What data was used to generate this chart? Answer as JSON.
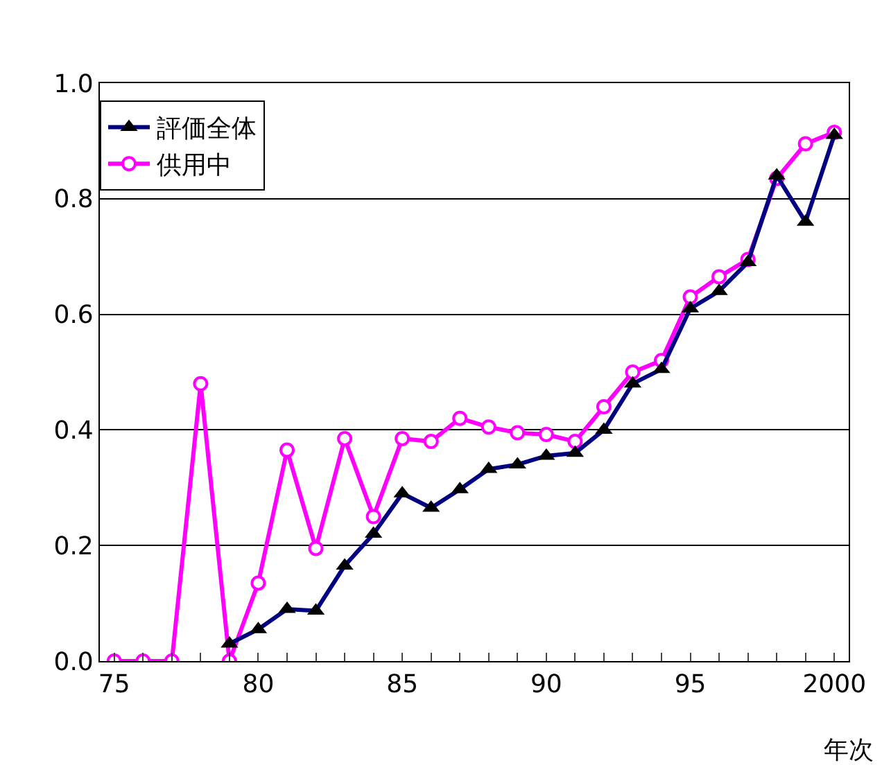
{
  "chart_data": {
    "type": "line",
    "xlabel": "年次",
    "x": [
      1975,
      1976,
      1977,
      1978,
      1979,
      1980,
      1981,
      1982,
      1983,
      1984,
      1985,
      1986,
      1987,
      1988,
      1989,
      1990,
      1991,
      1992,
      1993,
      1994,
      1995,
      1996,
      1997,
      1998,
      1999,
      2000
    ],
    "series": [
      {
        "name": "評価全体",
        "color": "#000080",
        "marker": "triangle",
        "values": [
          null,
          null,
          null,
          null,
          0.03,
          0.055,
          0.09,
          0.087,
          0.165,
          0.22,
          0.29,
          0.265,
          0.297,
          0.332,
          0.34,
          0.355,
          0.36,
          0.4,
          0.48,
          0.505,
          0.61,
          0.64,
          0.69,
          0.84,
          0.76,
          0.91
        ]
      },
      {
        "name": "供用中",
        "color": "#ff00ff",
        "marker": "circle",
        "values": [
          0,
          0,
          0,
          0.48,
          0,
          0.135,
          0.365,
          0.195,
          0.385,
          0.25,
          0.385,
          0.38,
          0.42,
          0.405,
          0.395,
          0.392,
          0.38,
          0.44,
          0.5,
          0.52,
          0.63,
          0.665,
          0.695,
          0.835,
          0.895,
          0.915
        ]
      }
    ],
    "xlim": [
      1974.5,
      2000.5
    ],
    "xticks": [
      {
        "value": 1975,
        "label": "75"
      },
      {
        "value": 1976,
        "label": null
      },
      {
        "value": 1977,
        "label": null
      },
      {
        "value": 1978,
        "label": null
      },
      {
        "value": 1979,
        "label": null
      },
      {
        "value": 1980,
        "label": "80"
      },
      {
        "value": 1981,
        "label": null
      },
      {
        "value": 1982,
        "label": null
      },
      {
        "value": 1983,
        "label": null
      },
      {
        "value": 1984,
        "label": null
      },
      {
        "value": 1985,
        "label": "85"
      },
      {
        "value": 1986,
        "label": null
      },
      {
        "value": 1987,
        "label": null
      },
      {
        "value": 1988,
        "label": null
      },
      {
        "value": 1989,
        "label": null
      },
      {
        "value": 1990,
        "label": "90"
      },
      {
        "value": 1991,
        "label": null
      },
      {
        "value": 1992,
        "label": null
      },
      {
        "value": 1993,
        "label": null
      },
      {
        "value": 1994,
        "label": null
      },
      {
        "value": 1995,
        "label": "95"
      },
      {
        "value": 1996,
        "label": null
      },
      {
        "value": 1997,
        "label": null
      },
      {
        "value": 1998,
        "label": null
      },
      {
        "value": 1999,
        "label": null
      },
      {
        "value": 2000,
        "label": "2000"
      }
    ],
    "ylim": [
      0,
      1.0
    ],
    "yticks": [
      {
        "value": 0,
        "label": "0.0"
      },
      {
        "value": 0.2,
        "label": "0.2"
      },
      {
        "value": 0.4,
        "label": "0.4"
      },
      {
        "value": 0.6,
        "label": "0.6"
      },
      {
        "value": 0.8,
        "label": "0.8"
      },
      {
        "value": 1.0,
        "label": "1.0"
      }
    ],
    "grid": "y",
    "legend": "top left",
    "line_style": "solid"
  }
}
